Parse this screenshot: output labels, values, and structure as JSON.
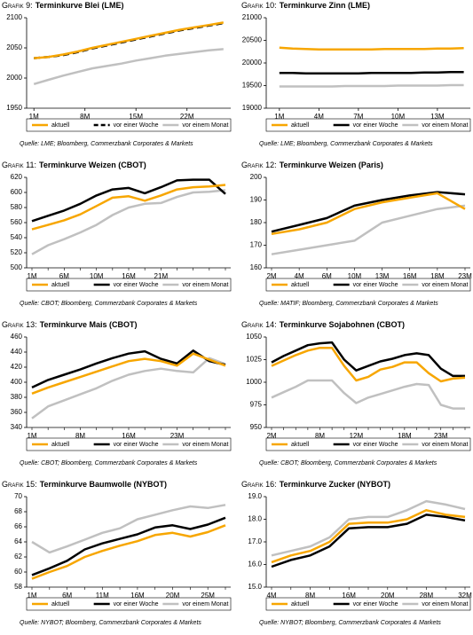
{
  "chart_data": [
    {
      "type": "line",
      "label": "Grafik 9:",
      "title": "Terminkurve Blei (LME)",
      "source": "Quelle: LME; Bloomberg, Commerzbank Corporates & Markets",
      "x": [
        1,
        3,
        5,
        7,
        9,
        11,
        13,
        15,
        17,
        19,
        21,
        23,
        25,
        27
      ],
      "xlim": [
        0,
        28
      ],
      "xticks": [
        {
          "value": 1,
          "label": "1M"
        },
        {
          "value": 8,
          "label": "8M"
        },
        {
          "value": 15,
          "label": "15M"
        },
        {
          "value": 22,
          "label": "22M"
        }
      ],
      "ylim": [
        1950,
        2100
      ],
      "yticks": [
        1950,
        2000,
        2050,
        2100
      ],
      "series": [
        {
          "name": "aktuell",
          "color": "#f7a600",
          "values": [
            2033,
            2035,
            2039,
            2044,
            2050,
            2055,
            2060,
            2065,
            2070,
            2075,
            2080,
            2084,
            2088,
            2092
          ]
        },
        {
          "name": "vor einer Woche",
          "color": "#000000",
          "dashed": true,
          "values": [
            2033,
            2035,
            2038,
            2043,
            2049,
            2054,
            2059,
            2064,
            2069,
            2074,
            2079,
            2083,
            2087,
            2091
          ]
        },
        {
          "name": "vor einem Monat",
          "color": "#c0c0c0",
          "values": [
            1990,
            1997,
            2004,
            2010,
            2016,
            2020,
            2024,
            2029,
            2033,
            2037,
            2040,
            2043,
            2046,
            2048
          ]
        }
      ]
    },
    {
      "type": "line",
      "label": "Grafik 10:",
      "title": "Terminkurve Zinn (LME)",
      "source": "Quelle: LME; Bloomberg, Commerzbank Corporates & Markets",
      "x": [
        1,
        2,
        3,
        4,
        5,
        6,
        7,
        8,
        9,
        10,
        11,
        12,
        13,
        14,
        15
      ],
      "xlim": [
        0,
        15.5
      ],
      "xticks": [
        {
          "value": 1,
          "label": "1M"
        },
        {
          "value": 4,
          "label": "4M"
        },
        {
          "value": 7,
          "label": "7M"
        },
        {
          "value": 10,
          "label": "10M"
        },
        {
          "value": 13,
          "label": "13M"
        }
      ],
      "ylim": [
        19000,
        21000
      ],
      "yticks": [
        19000,
        19500,
        20000,
        20500,
        21000
      ],
      "series": [
        {
          "name": "aktuell",
          "color": "#f7a600",
          "values": [
            20340,
            20320,
            20310,
            20300,
            20300,
            20300,
            20300,
            20300,
            20310,
            20310,
            20310,
            20310,
            20320,
            20320,
            20330
          ]
        },
        {
          "name": "vor einer Woche",
          "color": "#000000",
          "values": [
            19780,
            19780,
            19770,
            19770,
            19770,
            19770,
            19770,
            19780,
            19780,
            19780,
            19780,
            19790,
            19790,
            19800,
            19800
          ]
        },
        {
          "name": "vor einem Monat",
          "color": "#c0c0c0",
          "values": [
            19480,
            19480,
            19480,
            19480,
            19480,
            19490,
            19490,
            19490,
            19490,
            19500,
            19500,
            19500,
            19500,
            19510,
            19510
          ]
        }
      ]
    },
    {
      "type": "line",
      "label": "Grafik 11:",
      "title": "Terminkurve Weizen (CBOT)",
      "source": "Quelle: CBOT; Bloomberg, Commerzbank Corporates & Markets",
      "categories": [
        "1M",
        null,
        "6M",
        null,
        "10M",
        null,
        "16M",
        null,
        "21M",
        null,
        null,
        null,
        null
      ],
      "ylim": [
        500,
        620
      ],
      "yticks": [
        500,
        520,
        540,
        560,
        580,
        600,
        620
      ],
      "series": [
        {
          "name": "aktuell",
          "color": "#f7a600",
          "values": [
            551,
            557,
            563,
            571,
            582,
            593,
            595,
            589,
            596,
            604,
            607,
            608,
            610
          ]
        },
        {
          "name": "vor einer Woche",
          "color": "#000000",
          "values": [
            562,
            569,
            576,
            585,
            596,
            604,
            606,
            599,
            607,
            616,
            617,
            617,
            598
          ]
        },
        {
          "name": "vor einem Monat",
          "color": "#c0c0c0",
          "values": [
            518,
            530,
            538,
            547,
            557,
            570,
            580,
            585,
            586,
            594,
            600,
            601,
            603
          ]
        }
      ]
    },
    {
      "type": "line",
      "label": "Grafik 12:",
      "title": "Terminkurve Weizen (Paris)",
      "source": "Quelle: MATIF; Bloomberg, Commerzbank Corporates & Markets",
      "categories": [
        "2M",
        "4M",
        "6M",
        "10M",
        "13M",
        "16M",
        "18M",
        "23M"
      ],
      "ylim": [
        160,
        200
      ],
      "yticks": [
        160,
        170,
        180,
        190,
        200
      ],
      "series": [
        {
          "name": "aktuell",
          "color": "#f7a600",
          "values": [
            175,
            177,
            180,
            186,
            189,
            191,
            193,
            186
          ]
        },
        {
          "name": "vor einer Woche",
          "color": "#000000",
          "values": [
            176,
            179,
            182,
            187.5,
            190,
            192,
            193.5,
            192.5
          ]
        },
        {
          "name": "vor einem Monat",
          "color": "#c0c0c0",
          "values": [
            166,
            168,
            170,
            172,
            180,
            183,
            186,
            187.5
          ]
        }
      ]
    },
    {
      "type": "line",
      "label": "Grafik 13:",
      "title": "Terminkurve Mais (CBOT)",
      "source": "Quelle: CBOT; Bloomberg, Commerzbank Corporates & Markets",
      "categories": [
        "1M",
        null,
        null,
        "8M",
        null,
        null,
        "16M",
        null,
        null,
        "23M",
        null,
        null,
        null
      ],
      "ylim": [
        340,
        460
      ],
      "yticks": [
        340,
        360,
        380,
        400,
        420,
        440,
        460
      ],
      "series": [
        {
          "name": "aktuell",
          "color": "#f7a600",
          "values": [
            385,
            393,
            400,
            407,
            414,
            421,
            428,
            431,
            428,
            422,
            438,
            430,
            422
          ]
        },
        {
          "name": "vor einer Woche",
          "color": "#000000",
          "values": [
            393,
            403,
            410,
            417,
            425,
            432,
            438,
            441,
            431,
            425,
            442,
            428,
            423
          ]
        },
        {
          "name": "vor einem Monat",
          "color": "#c0c0c0",
          "values": [
            352,
            368,
            376,
            384,
            392,
            402,
            410,
            415,
            418,
            415,
            413,
            432,
            424
          ]
        }
      ]
    },
    {
      "type": "line",
      "label": "Grafik 14:",
      "title": "Terminkurve Sojabohnen (CBOT)",
      "source": "Quelle: CBOT; Bloomberg, Commerzbank Corporates & Markets",
      "categories": [
        "2M",
        null,
        null,
        null,
        "8M",
        null,
        null,
        "12M",
        null,
        null,
        null,
        "18M",
        null,
        null,
        "23M",
        null,
        null
      ],
      "ylim": [
        950,
        1050
      ],
      "yticks": [
        950,
        975,
        1000,
        1025,
        1050
      ],
      "series": [
        {
          "name": "aktuell",
          "color": "#f7a600",
          "values": [
            1018,
            1024,
            1030,
            1035,
            1038,
            1038,
            1018,
            1002,
            1006,
            1014,
            1017,
            1022,
            1022,
            1010,
            1001,
            1004,
            1005
          ]
        },
        {
          "name": "vor einer Woche",
          "color": "#000000",
          "values": [
            1022,
            1029,
            1035,
            1041,
            1043,
            1044,
            1025,
            1013,
            1018,
            1023,
            1026,
            1030,
            1032,
            1030,
            1015,
            1007,
            1007
          ]
        },
        {
          "name": "vor einem Monat",
          "color": "#c0c0c0",
          "values": [
            983,
            989,
            995,
            1002,
            1002,
            1002,
            988,
            977,
            983,
            987,
            991,
            995,
            998,
            997,
            975,
            971,
            971
          ]
        }
      ]
    },
    {
      "type": "line",
      "label": "Grafik 15:",
      "title": "Terminkurve Baumwolle (NYBOT)",
      "source": "Quelle: NYBOT; Bloomberg, Commerzbank Corporates & Markets",
      "categories": [
        "1M",
        null,
        "6M",
        null,
        "11M",
        null,
        "16M",
        null,
        "20M",
        null,
        "25M",
        null
      ],
      "ylim": [
        58,
        70
      ],
      "yticks": [
        58,
        60,
        62,
        64,
        66,
        68,
        70
      ],
      "series": [
        {
          "name": "aktuell",
          "color": "#f7a600",
          "values": [
            59.1,
            60.0,
            60.8,
            62.0,
            62.8,
            63.5,
            64.1,
            64.9,
            65.2,
            64.7,
            65.3,
            66.2
          ]
        },
        {
          "name": "vor einer Woche",
          "color": "#000000",
          "values": [
            59.6,
            60.5,
            61.5,
            63.0,
            63.8,
            64.4,
            65.0,
            65.9,
            66.2,
            65.7,
            66.3,
            67.2
          ]
        },
        {
          "name": "vor einem Monat",
          "color": "#c0c0c0",
          "values": [
            64.0,
            62.6,
            63.4,
            64.3,
            65.2,
            65.8,
            67.0,
            67.6,
            68.2,
            68.7,
            68.5,
            68.9
          ]
        }
      ]
    },
    {
      "type": "line",
      "label": "Grafik 16:",
      "title": "Terminkurve Zucker (NYBOT)",
      "source": "Quelle: NYBOT; Bloomberg, Commerzbank Corporates & Markets",
      "categories": [
        "4M",
        null,
        "8M",
        null,
        "16M",
        null,
        "20M",
        null,
        "28M",
        null,
        "32M"
      ],
      "ylim": [
        15,
        19
      ],
      "yticks": [
        {
          "value": 15,
          "label": "15.0"
        },
        {
          "value": 16,
          "label": "16.0"
        },
        {
          "value": 17,
          "label": "17.0"
        },
        {
          "value": 18,
          "label": "18.0"
        },
        {
          "value": 19,
          "label": "19.0"
        }
      ],
      "series": [
        {
          "name": "aktuell",
          "color": "#f7a600",
          "values": [
            16.1,
            16.4,
            16.6,
            17.0,
            17.8,
            17.85,
            17.85,
            18.0,
            18.4,
            18.2,
            18.1
          ]
        },
        {
          "name": "vor einer Woche",
          "color": "#000000",
          "values": [
            15.9,
            16.2,
            16.4,
            16.8,
            17.6,
            17.65,
            17.65,
            17.8,
            18.2,
            18.1,
            17.95
          ]
        },
        {
          "name": "vor einem Monat",
          "color": "#c0c0c0",
          "values": [
            16.4,
            16.6,
            16.8,
            17.2,
            18.0,
            18.1,
            18.1,
            18.4,
            18.8,
            18.65,
            18.45
          ]
        }
      ]
    }
  ]
}
